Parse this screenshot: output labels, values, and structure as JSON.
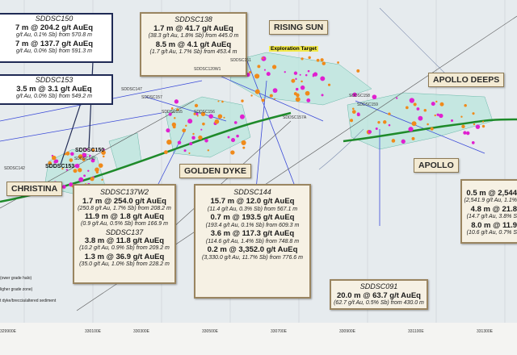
{
  "callouts": [
    {
      "title": "SDDSC150",
      "lines": [
        "7 m @ 204.2 g/t AuEq",
        "g/t Au, 0.1% Sb) from 570.8 m",
        "7 m @ 137.7 g/t AuEq",
        "g/t Au, 0.0% Sb) from 591.3 m"
      ]
    },
    {
      "title": "SDDSC153",
      "lines": [
        "3.5 m @ 3.1 g/t AuEq",
        "g/t Au, 0.0% Sb) from 549.2 m"
      ]
    },
    {
      "title": "SDDSC138",
      "lines": [
        "1.7 m @ 41.7 g/t AuEq",
        "(38.3 g/t Au, 1.8% Sb) from 445.0 m",
        "8.5 m @ 4.1 g/t AuEq",
        "(1.7 g/t Au, 1.7% Sb) from 453.4 m"
      ]
    },
    {
      "title": "SDDSC137W2",
      "lines": [
        "1.7 m @ 254.0 g/t AuEq",
        "(250.8 g/t Au, 1.7% Sb) from 208.2 m",
        "11.9 m @ 1.8 g/t AuEq",
        "(0.9 g/t Au, 0.5% Sb) from 166.9 m"
      ]
    },
    {
      "title": "SDDSC137",
      "lines": [
        "3.8 m @ 11.8 g/t AuEq",
        "(10.2 g/t Au, 0.9% Sb) from 209.2 m",
        "1.3 m @ 36.9 g/t AuEq",
        "(35.0 g/t Au, 1.0% Sb) from 228.2 m"
      ]
    },
    {
      "title": "SDDSC144",
      "lines": [
        "15.7 m @ 12.0 g/t AuEq",
        "(11.4 g/t Au, 0.3% Sb) from 567.1 m",
        "0.7 m @ 193.5 g/t AuEq",
        "(193.4 g/t Au, 0.1% Sb) from 609.3 m",
        "3.6 m @ 117.3 g/t AuEq",
        "(114.6 g/t Au, 1.4% Sb) from 748.8 m",
        "0.2 m @ 3,352.0 g/t AuEq",
        "(3,330.0 g/t Au, 11.7% Sb) from 776.6 m"
      ]
    },
    {
      "title": "SDDSC091",
      "lines": [
        "20.0 m @ 63.7 g/t AuEq",
        "(62.7 g/t Au, 0.5% Sb) from 430.0 m"
      ]
    },
    {
      "lines": [
        "0.5 m @ 2,544",
        "(2,541.9 g/t Au, 1.1%",
        "4.8 m @ 21.8",
        "(14.7 g/t Au, 3.8% S",
        "8.0 m @ 11.9",
        "(10.6 g/t Au, 0.7% S"
      ]
    }
  ],
  "labels": [
    "RISING SUN",
    "Exploration Target",
    "APOLLO DEEPS",
    "APOLLO",
    "GOLDEN DYKE",
    "CHRISTINA"
  ],
  "hole_labels": [
    "SDDSC150",
    "SDDSC153",
    "SDDSC140",
    "SDDSC142",
    "SDDSC120W1",
    "SDDSC147",
    "SDDSC155",
    "SDDSC156",
    "SDDSC157",
    "SDDSC151",
    "SDDSC157A",
    "SDDSC158",
    "SDDSC159"
  ],
  "legend": [
    "(ower grade halo)",
    "ligher grade zone)",
    "t dyke/breccia/altered sediment"
  ],
  "eastings": [
    "329900E",
    "330100E",
    "330300E",
    "330500E",
    "330700E",
    "330900E",
    "331100E",
    "331300E"
  ]
}
